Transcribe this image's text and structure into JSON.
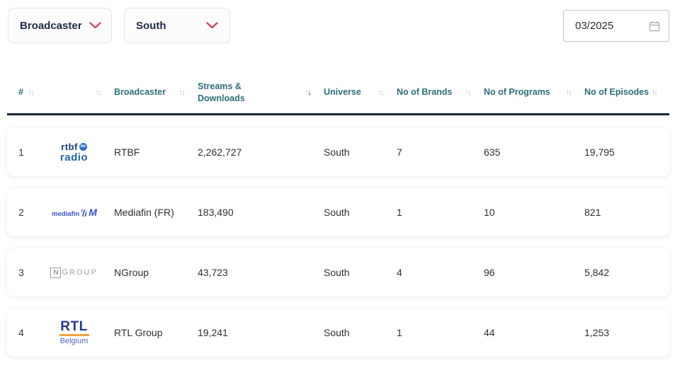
{
  "filters": {
    "broadcaster_dropdown": {
      "label": "Broadcaster"
    },
    "universe_dropdown": {
      "label": "South"
    },
    "date_input": {
      "value": "03/2025"
    }
  },
  "table": {
    "columns": [
      {
        "id": "rank",
        "label": "#",
        "sort": "none"
      },
      {
        "id": "logo",
        "label": "",
        "sort": "none"
      },
      {
        "id": "broadcaster",
        "label": "Broadcaster",
        "sort": "none"
      },
      {
        "id": "streams",
        "label": "Streams & Downloads",
        "sort": "desc"
      },
      {
        "id": "universe",
        "label": "Universe",
        "sort": "none"
      },
      {
        "id": "brands",
        "label": "No of Brands",
        "sort": "none"
      },
      {
        "id": "programs",
        "label": "No of Programs",
        "sort": "none"
      },
      {
        "id": "episodes",
        "label": "No of Episodes",
        "sort": "none"
      }
    ],
    "rows": [
      {
        "rank": "1",
        "logo": {
          "type": "rtbf-radio",
          "alt": "RTBF Radio",
          "line1": "rtbf",
          "badge": "be",
          "line2": "radio"
        },
        "broadcaster": "RTBF",
        "streams": "2,262,727",
        "universe": "South",
        "brands": "7",
        "programs": "635",
        "episodes": "19,795"
      },
      {
        "rank": "2",
        "logo": {
          "type": "mediafin",
          "alt": "Mediafin",
          "text": "mediafin",
          "mark": "M"
        },
        "broadcaster": "Mediafin (FR)",
        "streams": "183,490",
        "universe": "South",
        "brands": "1",
        "programs": "10",
        "episodes": "821"
      },
      {
        "rank": "3",
        "logo": {
          "type": "ngroup",
          "alt": "NGroup",
          "boxed": "N",
          "rest": "GROUP"
        },
        "broadcaster": "NGroup",
        "streams": "43,723",
        "universe": "South",
        "brands": "4",
        "programs": "96",
        "episodes": "5,842"
      },
      {
        "rank": "4",
        "logo": {
          "type": "rtl-belgium",
          "alt": "RTL Belgium",
          "main": "RTL",
          "sub": "Belgium"
        },
        "broadcaster": "RTL Group",
        "streams": "19,241",
        "universe": "South",
        "brands": "1",
        "programs": "44",
        "episodes": "1,253"
      }
    ]
  },
  "colors": {
    "header_text": "#2f6e7a",
    "sort_inactive": "#b5c7ca",
    "sort_active": "#2b5a64",
    "header_border": "#1b2639",
    "accent_red": "#d9455f",
    "card_background": "#ffffff"
  }
}
